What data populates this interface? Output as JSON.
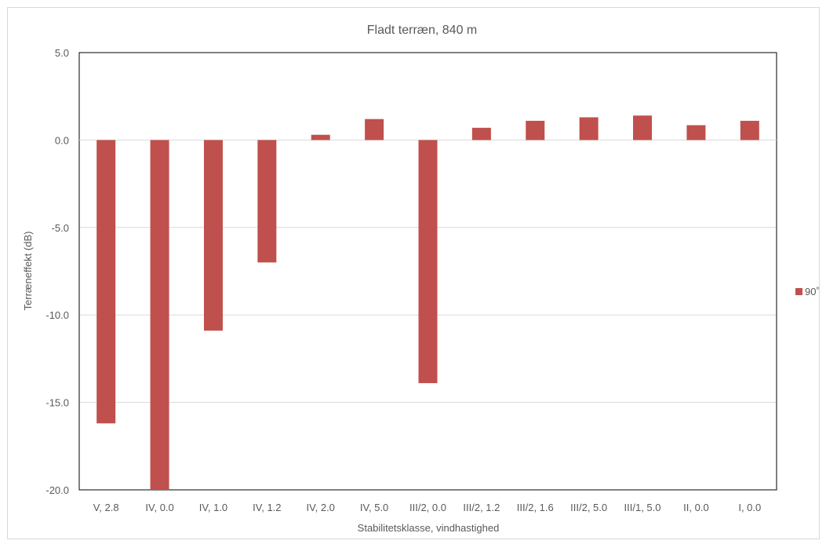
{
  "chart_data": {
    "type": "bar",
    "title": "Fladt terræn, 840 m",
    "xlabel": "Stabilitetsklasse, vindhastighed",
    "ylabel": "Terræneffekt (dB)",
    "categories": [
      "V, 2.8",
      "IV, 0.0",
      "IV, 1.0",
      "IV, 1.2",
      "IV, 2.0",
      "IV, 5.0",
      "III/2, 0.0",
      "III/2, 1.2",
      "III/2, 1.6",
      "III/2, 5.0",
      "III/1, 5.0",
      "II, 0.0",
      "I, 0.0"
    ],
    "series": [
      {
        "name": "90˚",
        "color": "#c0504d",
        "values": [
          -16.2,
          -20.0,
          -10.9,
          -7.0,
          0.3,
          1.2,
          -13.9,
          0.7,
          1.1,
          1.3,
          1.4,
          0.85,
          1.1
        ]
      }
    ],
    "ylim": [
      -20,
      5
    ],
    "yticks": [
      5,
      0,
      -5,
      -10,
      -15,
      -20
    ],
    "ytick_labels": [
      "5.0",
      "0.0",
      "-5.0",
      "-10.0",
      "-15.0",
      "-20.0"
    ],
    "grid": true,
    "legend_position": "right"
  }
}
